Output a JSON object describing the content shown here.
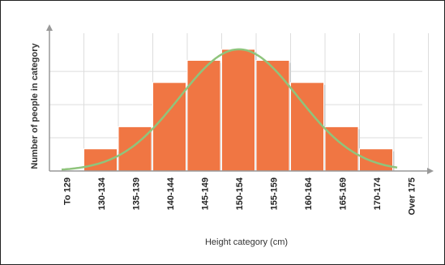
{
  "chart_data": {
    "type": "bar",
    "title": "",
    "xlabel": "Height category (cm)",
    "ylabel": "Number of people in category",
    "categories": [
      "To 129",
      "130-134",
      "135-139",
      "140-144",
      "145-149",
      "150-154",
      "155-159",
      "160-164",
      "165-169",
      "170-174",
      "Over 175"
    ],
    "values": [
      0,
      1,
      2,
      4,
      5,
      5.5,
      5,
      4,
      2,
      1,
      0
    ],
    "curve": "normal-distribution",
    "ylim": [
      0,
      6
    ],
    "grid": true,
    "colors": {
      "bar": "#f07643",
      "bar_shadow": "#c8c8c8",
      "curve": "#8fc47c",
      "grid": "#dddddd",
      "axis": "#999999"
    }
  }
}
